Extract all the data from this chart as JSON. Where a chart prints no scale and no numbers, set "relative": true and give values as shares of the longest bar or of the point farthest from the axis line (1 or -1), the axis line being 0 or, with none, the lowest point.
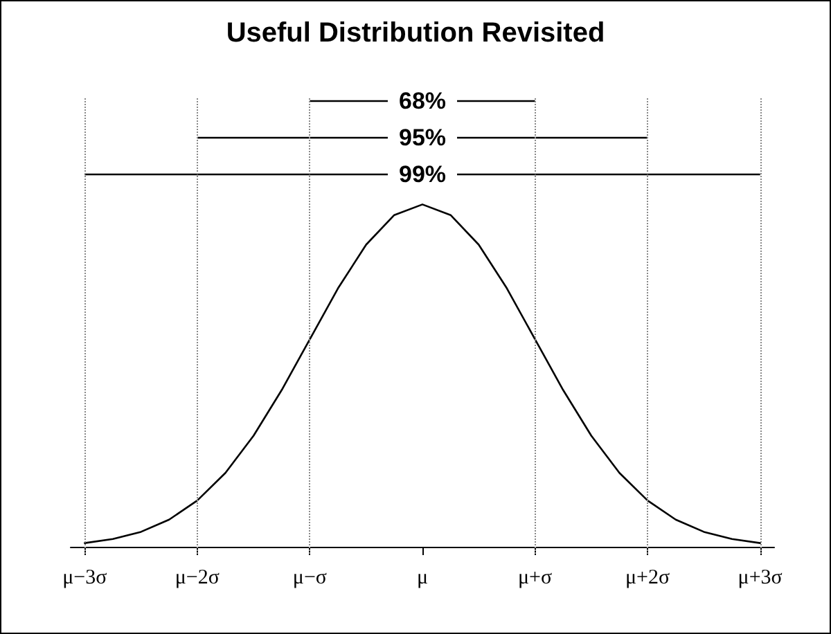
{
  "chart_data": {
    "type": "line",
    "title": "Useful Distribution Revisited",
    "relative": true,
    "categories": [
      "μ−3σ",
      null,
      null,
      null,
      "μ−2σ",
      null,
      null,
      null,
      "μ−σ",
      null,
      null,
      null,
      "μ",
      null,
      null,
      null,
      "μ+σ",
      null,
      null,
      null,
      "μ+2σ",
      null,
      null,
      null,
      "μ+3σ"
    ],
    "series": [
      {
        "color": "#000000",
        "values": [
          0.0111,
          0.0228,
          0.0439,
          0.0796,
          0.1353,
          0.216,
          0.3247,
          0.458,
          0.6065,
          0.755,
          0.8825,
          0.969,
          1,
          0.969,
          0.8825,
          0.755,
          0.6065,
          0.458,
          0.3247,
          0.216,
          0.1353,
          0.0796,
          0.0439,
          0.0228,
          0.0111
        ]
      }
    ],
    "ref_lines": [
      {
        "axis": "x",
        "value": "μ−3σ",
        "color": "#888888",
        "line_style": "dotted"
      },
      {
        "axis": "x",
        "value": "μ−2σ",
        "color": "#888888",
        "line_style": "dotted"
      },
      {
        "axis": "x",
        "value": "μ−σ",
        "color": "#888888",
        "line_style": "dotted"
      },
      {
        "axis": "x",
        "value": "μ+σ",
        "color": "#888888",
        "line_style": "dotted"
      },
      {
        "axis": "x",
        "value": "μ+2σ",
        "color": "#888888",
        "line_style": "dotted"
      },
      {
        "axis": "x",
        "value": "μ+3σ",
        "color": "#888888",
        "line_style": "dotted"
      }
    ],
    "annotations": [
      "68%",
      "95%",
      "99%"
    ],
    "grid": false,
    "marker": "none",
    "line_style": "solid"
  }
}
